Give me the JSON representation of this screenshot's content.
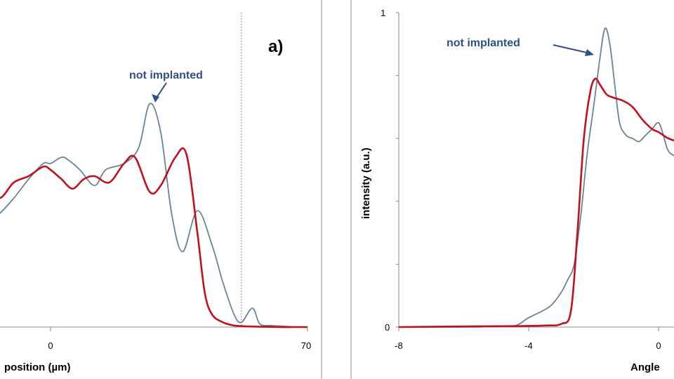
{
  "colors": {
    "not_implanted": "#6b8299",
    "implanted": "#c0121c",
    "annotation": "#2f4f86",
    "frame": "#b0b0b0"
  },
  "chart_data": [
    {
      "type": "line",
      "panel_label": "a)",
      "xlabel": "position (µm)",
      "ylabel": "",
      "x_ticks": [
        "0",
        "70"
      ],
      "xlim": [
        -40,
        70
      ],
      "ylim": [
        0,
        1
      ],
      "annotation": "not implanted",
      "reference_line_x": 52,
      "series": [
        {
          "name": "not implanted",
          "x": [
            -40,
            -32,
            -28,
            -25,
            -22,
            -18,
            -14,
            -10,
            -6,
            -2,
            0,
            3,
            5,
            8,
            12,
            15,
            20,
            24,
            27,
            30,
            33,
            36,
            40,
            44,
            47,
            50,
            52,
            55,
            57,
            60,
            63,
            66,
            70
          ],
          "y": [
            0.34,
            0.33,
            0.32,
            0.31,
            0.34,
            0.33,
            0.36,
            0.41,
            0.47,
            0.52,
            0.52,
            0.54,
            0.53,
            0.5,
            0.45,
            0.5,
            0.52,
            0.57,
            0.71,
            0.62,
            0.36,
            0.24,
            0.37,
            0.26,
            0.14,
            0.04,
            0.015,
            0.06,
            0.01,
            0.005,
            0.003,
            0.001,
            0.0
          ]
        },
        {
          "name": "implanted",
          "x": [
            -40,
            -35,
            -30,
            -26,
            -22,
            -18,
            -14,
            -10,
            -6,
            -2,
            0,
            3,
            6,
            9,
            12,
            16,
            20,
            23,
            27,
            30,
            34,
            37,
            40,
            42,
            44,
            47,
            50,
            54,
            58,
            62,
            66,
            70
          ],
          "y": [
            0.5,
            0.48,
            0.49,
            0.53,
            0.5,
            0.46,
            0.41,
            0.46,
            0.48,
            0.51,
            0.5,
            0.47,
            0.44,
            0.47,
            0.48,
            0.46,
            0.52,
            0.54,
            0.43,
            0.45,
            0.54,
            0.55,
            0.3,
            0.11,
            0.04,
            0.015,
            0.005,
            0.002,
            0.001,
            0.0,
            0.0,
            0.0
          ]
        }
      ]
    },
    {
      "type": "line",
      "xlabel": "Angle",
      "ylabel": "intensity (a.u.)",
      "x_ticks": [
        "-8",
        "-4",
        "0"
      ],
      "y_ticks": [
        "0",
        "1"
      ],
      "xlim": [
        -8,
        1.6
      ],
      "ylim": [
        0,
        1
      ],
      "annotation": "not implanted",
      "series": [
        {
          "name": "not implanted",
          "x": [
            -8,
            -6,
            -5,
            -4.4,
            -4.0,
            -3.6,
            -3.3,
            -3.0,
            -2.8,
            -2.6,
            -2.4,
            -2.2,
            -2.0,
            -1.8,
            -1.65,
            -1.5,
            -1.35,
            -1.2,
            -1.0,
            -0.8,
            -0.6,
            -0.4,
            -0.2,
            0.0,
            0.15,
            0.3,
            0.6,
            1.0,
            1.6
          ],
          "y": [
            0.0,
            0.0,
            0.002,
            0.005,
            0.03,
            0.05,
            0.07,
            0.11,
            0.15,
            0.2,
            0.35,
            0.55,
            0.7,
            0.86,
            0.95,
            0.9,
            0.77,
            0.65,
            0.61,
            0.6,
            0.59,
            0.61,
            0.63,
            0.65,
            0.61,
            0.56,
            0.54,
            0.53,
            0.52
          ]
        },
        {
          "name": "implanted",
          "x": [
            -8,
            -6,
            -4.5,
            -3.5,
            -3.0,
            -2.7,
            -2.5,
            -2.3,
            -2.1,
            -1.95,
            -1.8,
            -1.6,
            -1.4,
            -1.1,
            -0.8,
            -0.5,
            -0.2,
            0.0,
            0.3,
            0.6,
            1.0,
            1.6
          ],
          "y": [
            0.0,
            0.002,
            0.003,
            0.005,
            0.01,
            0.05,
            0.3,
            0.6,
            0.75,
            0.79,
            0.77,
            0.74,
            0.73,
            0.72,
            0.7,
            0.66,
            0.63,
            0.62,
            0.6,
            0.59,
            0.58,
            0.57
          ]
        }
      ]
    }
  ]
}
